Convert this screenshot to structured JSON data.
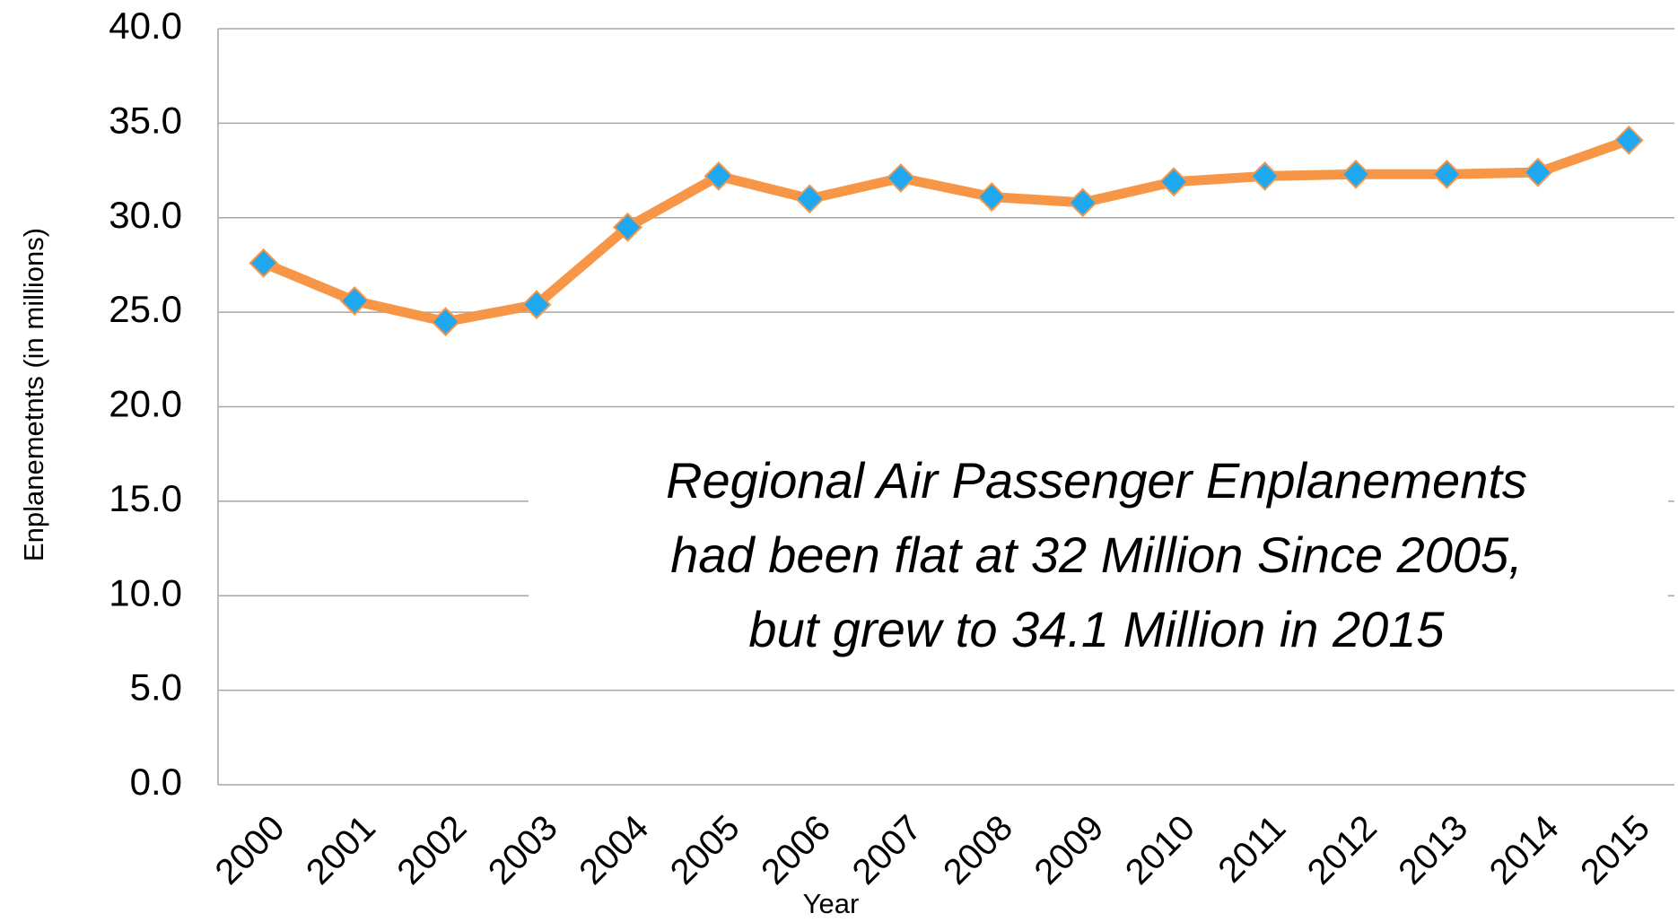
{
  "chart_data": {
    "type": "line",
    "y_label": "Enplanemetnts (in millions)",
    "x_label": "Year",
    "annotation": [
      "Regional Air Passenger Enplanements",
      "had been flat at 32 Million Since 2005,",
      "but grew to 34.1 Million in 2015"
    ],
    "categories": [
      "2000",
      "2001",
      "2002",
      "2003",
      "2004",
      "2005",
      "2006",
      "2007",
      "2008",
      "2009",
      "2010",
      "2011",
      "2012",
      "2013",
      "2014",
      "2015"
    ],
    "series": [
      {
        "color": "#f79646",
        "marker_color": "#1fa7f0",
        "values": [
          27.6,
          25.6,
          24.5,
          25.4,
          29.5,
          32.2,
          31.0,
          32.1,
          31.1,
          30.8,
          31.9,
          32.2,
          32.3,
          32.3,
          32.4,
          34.1
        ]
      }
    ],
    "ylim": [
      0,
      40
    ],
    "yticks": [
      {
        "value": 0,
        "label": "0.0"
      },
      {
        "value": 5,
        "label": "5.0"
      },
      {
        "value": 10,
        "label": "10.0"
      },
      {
        "value": 15,
        "label": "15.0"
      },
      {
        "value": 20,
        "label": "20.0"
      },
      {
        "value": 25,
        "label": "25.0"
      },
      {
        "value": 30,
        "label": "30.0"
      },
      {
        "value": 35,
        "label": "35.0"
      },
      {
        "value": 40,
        "label": "40.0"
      }
    ],
    "grid": true
  }
}
